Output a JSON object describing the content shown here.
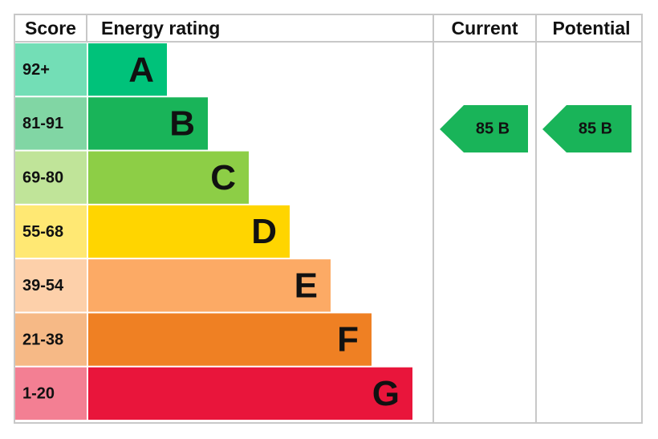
{
  "header": {
    "score": "Score",
    "rating": "Energy rating",
    "current": "Current",
    "potential": "Potential"
  },
  "bands": [
    {
      "score": "92+",
      "letter": "A",
      "color": "#00c27a"
    },
    {
      "score": "81-91",
      "letter": "B",
      "color": "#19b459"
    },
    {
      "score": "69-80",
      "letter": "C",
      "color": "#8dce46"
    },
    {
      "score": "55-68",
      "letter": "D",
      "color": "#ffd500"
    },
    {
      "score": "39-54",
      "letter": "E",
      "color": "#fcaa65"
    },
    {
      "score": "21-38",
      "letter": "F",
      "color": "#ef8023"
    },
    {
      "score": "1-20",
      "letter": "G",
      "color": "#e9153b"
    }
  ],
  "current": {
    "label": "85 B"
  },
  "potential": {
    "label": "85 B"
  }
}
